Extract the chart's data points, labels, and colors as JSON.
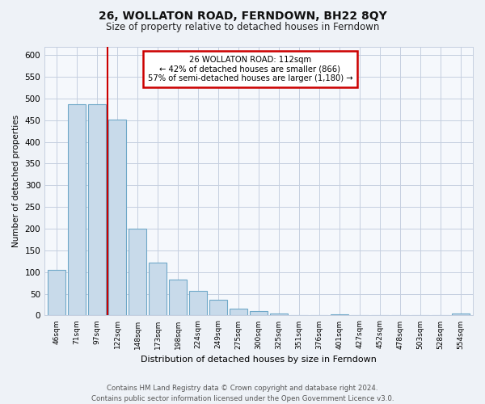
{
  "title": "26, WOLLATON ROAD, FERNDOWN, BH22 8QY",
  "subtitle": "Size of property relative to detached houses in Ferndown",
  "xlabel": "Distribution of detached houses by size in Ferndown",
  "ylabel": "Number of detached properties",
  "categories": [
    "46sqm",
    "71sqm",
    "97sqm",
    "122sqm",
    "148sqm",
    "173sqm",
    "198sqm",
    "224sqm",
    "249sqm",
    "275sqm",
    "300sqm",
    "325sqm",
    "351sqm",
    "376sqm",
    "401sqm",
    "427sqm",
    "452sqm",
    "478sqm",
    "503sqm",
    "528sqm",
    "554sqm"
  ],
  "values": [
    105,
    487,
    487,
    452,
    200,
    122,
    82,
    57,
    36,
    16,
    10,
    5,
    0,
    0,
    3,
    0,
    0,
    0,
    0,
    0,
    5
  ],
  "bar_color": "#c8daea",
  "bar_edge_color": "#6fa8c8",
  "vline_x": 2.5,
  "vline_color": "#cc0000",
  "annotation_text": "26 WOLLATON ROAD: 112sqm\n← 42% of detached houses are smaller (866)\n57% of semi-detached houses are larger (1,180) →",
  "annotation_box_color": "#ffffff",
  "annotation_box_edge": "#cc0000",
  "ylim": [
    0,
    620
  ],
  "yticks": [
    0,
    50,
    100,
    150,
    200,
    250,
    300,
    350,
    400,
    450,
    500,
    550,
    600
  ],
  "footer": "Contains HM Land Registry data © Crown copyright and database right 2024.\nContains public sector information licensed under the Open Government Licence v3.0.",
  "bg_color": "#eef2f7",
  "plot_bg_color": "#f5f8fc",
  "grid_color": "#c5cfe0"
}
